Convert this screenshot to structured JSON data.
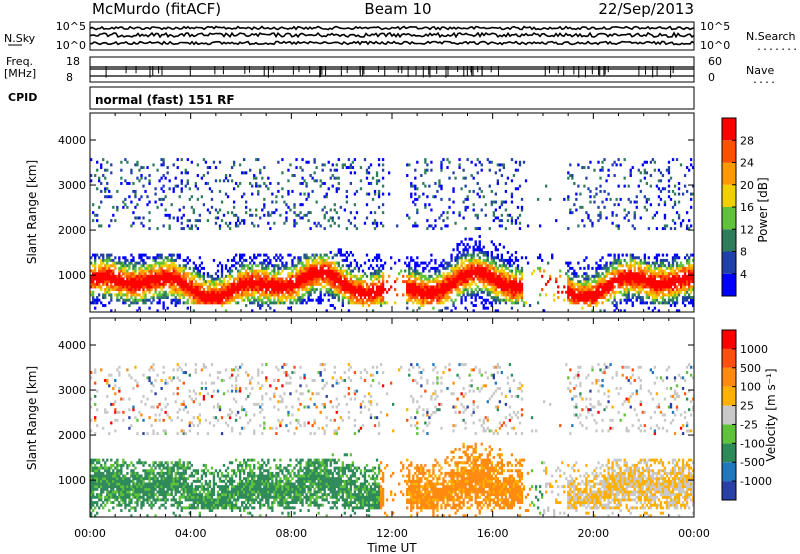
{
  "header": {
    "station": "McMurdo (fitACF)",
    "beam": "Beam 10",
    "date": "22/Sep/2013"
  },
  "summary": {
    "nsky_label": "N.Sky",
    "nsky_ticks": [
      "10^5",
      "10^0"
    ],
    "nsearch_label": "N.Search",
    "nsearch_dots": ".......",
    "nsearch_ticks": [
      "10^5",
      "10^0"
    ],
    "freq_label": [
      "Freq.",
      "[MHz]"
    ],
    "freq_ticks": [
      "18",
      "8"
    ],
    "nave_label": "Nave",
    "nave_dots": "....",
    "nave_ticks": [
      "60",
      "0"
    ],
    "cpid_label": "CPID",
    "cpid_text": "normal (fast) 151 RF"
  },
  "chart_data": [
    {
      "type": "heatmap",
      "name": "power",
      "ylabel": "Slant Range [km]",
      "yticks": [
        "1000",
        "2000",
        "3000",
        "4000"
      ],
      "ylim": [
        180,
        4600
      ],
      "xticks": [
        "00:00",
        "04:00",
        "08:00",
        "12:00",
        "16:00",
        "20:00",
        "00:00"
      ],
      "xlim_hours": [
        0,
        24
      ],
      "colorbar_label": "Power [dB]",
      "colorbar_ticks": [
        "4",
        "8",
        "12",
        "16",
        "20",
        "24",
        "28"
      ],
      "colorbar_colors": [
        "#0000ff",
        "#1f3faa",
        "#2f7c5c",
        "#5fc33a",
        "#f0d000",
        "#ff9900",
        "#ff5000",
        "#ff0000"
      ]
    },
    {
      "type": "heatmap",
      "name": "velocity",
      "ylabel": "Slant Range [km]",
      "yticks": [
        "1000",
        "2000",
        "3000",
        "4000"
      ],
      "ylim": [
        180,
        4600
      ],
      "xticks": [
        "00:00",
        "04:00",
        "08:00",
        "12:00",
        "16:00",
        "20:00",
        "00:00"
      ],
      "xlim_hours": [
        0,
        24
      ],
      "xlabel": "Time UT",
      "colorbar_label": "Velocity [m s⁻¹]",
      "colorbar_ticks": [
        "1000",
        "500",
        "100",
        "25",
        "-25",
        "-100",
        "-500",
        "-1000"
      ],
      "colorbar_colors": [
        "#2a3fa5",
        "#1f77c0",
        "#2f8a5a",
        "#5fc33a",
        "#c8c8c8",
        "#ffb000",
        "#ff8a10",
        "#ff5010",
        "#ff0000"
      ]
    }
  ]
}
